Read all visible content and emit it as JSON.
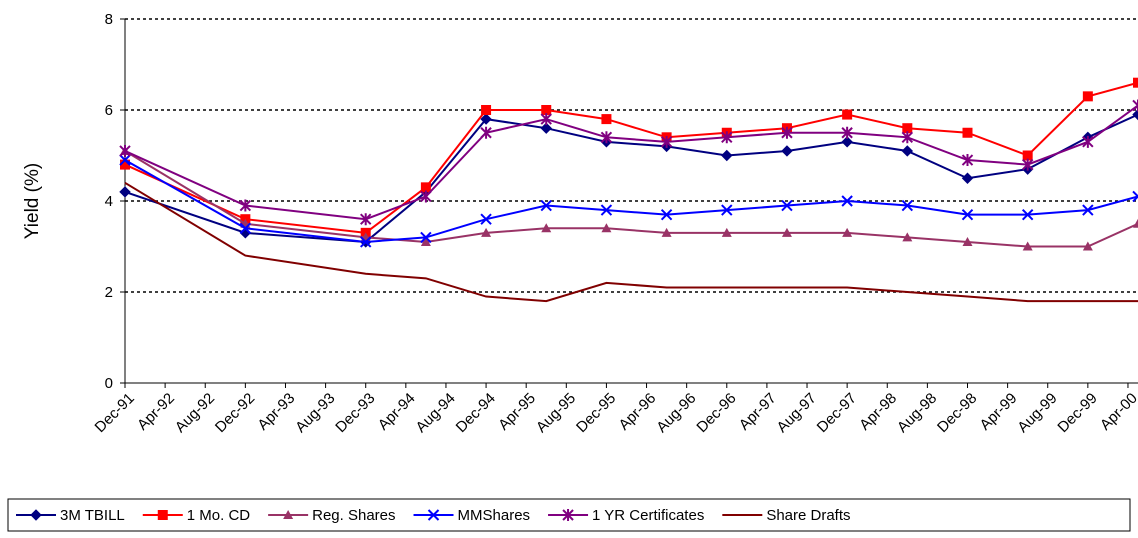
{
  "chart_data": {
    "type": "line",
    "y_label": "Yield (%)",
    "x": [
      0,
      12,
      24,
      30,
      36,
      42,
      48,
      54,
      60,
      66,
      72,
      78,
      84,
      90,
      96,
      101
    ],
    "xlim": [
      0,
      101
    ],
    "xticks": [
      {
        "value": 0,
        "label": "Dec-91"
      },
      {
        "value": 4,
        "label": "Apr-92"
      },
      {
        "value": 8,
        "label": "Aug-92"
      },
      {
        "value": 12,
        "label": "Dec-92"
      },
      {
        "value": 16,
        "label": "Apr-93"
      },
      {
        "value": 20,
        "label": "Aug-93"
      },
      {
        "value": 24,
        "label": "Dec-93"
      },
      {
        "value": 28,
        "label": "Apr-94"
      },
      {
        "value": 32,
        "label": "Aug-94"
      },
      {
        "value": 36,
        "label": "Dec-94"
      },
      {
        "value": 40,
        "label": "Apr-95"
      },
      {
        "value": 44,
        "label": "Aug-95"
      },
      {
        "value": 48,
        "label": "Dec-95"
      },
      {
        "value": 52,
        "label": "Apr-96"
      },
      {
        "value": 56,
        "label": "Aug-96"
      },
      {
        "value": 60,
        "label": "Dec-96"
      },
      {
        "value": 64,
        "label": "Apr-97"
      },
      {
        "value": 68,
        "label": "Aug-97"
      },
      {
        "value": 72,
        "label": "Dec-97"
      },
      {
        "value": 76,
        "label": "Apr-98"
      },
      {
        "value": 80,
        "label": "Aug-98"
      },
      {
        "value": 84,
        "label": "Dec-98"
      },
      {
        "value": 88,
        "label": "Apr-99"
      },
      {
        "value": 92,
        "label": "Aug-99"
      },
      {
        "value": 96,
        "label": "Dec-99"
      },
      {
        "value": 100,
        "label": "Apr-00"
      }
    ],
    "ylim": [
      0,
      8
    ],
    "yticks": [
      0,
      2,
      4,
      6,
      8
    ],
    "grid": true,
    "legend": "bottom",
    "series": [
      {
        "name": "3M TBILL",
        "color": "#000080",
        "marker": "diamond",
        "values": [
          4.2,
          3.3,
          3.1,
          4.2,
          5.8,
          5.6,
          5.3,
          5.2,
          5.0,
          5.1,
          5.3,
          5.1,
          4.5,
          4.7,
          5.4,
          5.9
        ]
      },
      {
        "name": "1 Mo. CD",
        "color": "#ff0000",
        "marker": "square",
        "values": [
          4.8,
          3.6,
          3.3,
          4.3,
          6.0,
          6.0,
          5.8,
          5.4,
          5.5,
          5.6,
          5.9,
          5.6,
          5.5,
          5.0,
          6.3,
          6.6
        ]
      },
      {
        "name": "Reg. Shares",
        "color": "#993366",
        "marker": "triangle",
        "values": [
          5.1,
          3.5,
          3.2,
          3.1,
          3.3,
          3.4,
          3.4,
          3.3,
          3.3,
          3.3,
          3.3,
          3.2,
          3.1,
          3.0,
          3.0,
          3.5
        ]
      },
      {
        "name": "MMShares",
        "color": "#0000ff",
        "marker": "x",
        "values": [
          4.9,
          3.4,
          3.1,
          3.2,
          3.6,
          3.9,
          3.8,
          3.7,
          3.8,
          3.9,
          4.0,
          3.9,
          3.7,
          3.7,
          3.8,
          4.1
        ]
      },
      {
        "name": "1 YR Certificates",
        "color": "#800080",
        "marker": "star",
        "values": [
          5.1,
          3.9,
          3.6,
          4.1,
          5.5,
          5.8,
          5.4,
          5.3,
          5.4,
          5.5,
          5.5,
          5.4,
          4.9,
          4.8,
          5.3,
          6.1
        ]
      },
      {
        "name": "Share Drafts",
        "color": "#800000",
        "marker": "none",
        "values": [
          4.4,
          2.8,
          2.4,
          2.3,
          1.9,
          1.8,
          2.2,
          2.1,
          2.1,
          2.1,
          2.1,
          2.0,
          1.9,
          1.8,
          1.8,
          1.8
        ]
      }
    ]
  }
}
